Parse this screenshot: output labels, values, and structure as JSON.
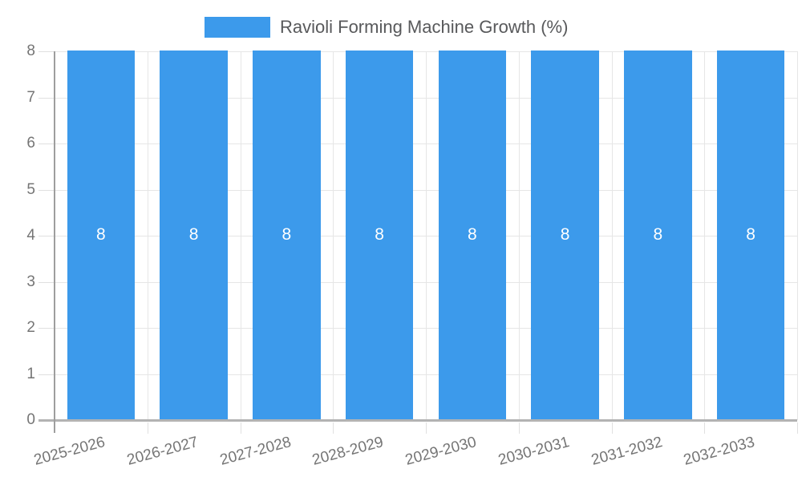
{
  "legend": {
    "series_label": "Ravioli Forming Machine Growth (%)"
  },
  "chart_data": {
    "type": "bar",
    "title": "Ravioli Forming Machine Growth (%)",
    "categories": [
      "2025-2026",
      "2026-2027",
      "2027-2028",
      "2028-2029",
      "2029-2030",
      "2030-2031",
      "2031-2032",
      "2032-2033"
    ],
    "series": [
      {
        "name": "Ravioli Forming Machine Growth (%)",
        "values": [
          8,
          8,
          8,
          8,
          8,
          8,
          8,
          8
        ],
        "color": "#3c9aeb"
      }
    ],
    "bar_labels": [
      "8",
      "8",
      "8",
      "8",
      "8",
      "8",
      "8",
      "8"
    ],
    "xlabel": "",
    "ylabel": "",
    "ylim": [
      0,
      8
    ],
    "yticks": [
      0,
      1,
      2,
      3,
      4,
      5,
      6,
      7,
      8
    ],
    "grid": true,
    "legend_position": "top"
  },
  "colors": {
    "bar": "#3c9aeb",
    "bar_label": "#ffffff",
    "axis_text": "#757575",
    "legend_text": "#58595b",
    "gridline": "#e6e6e6",
    "tick": "#e0e0e0",
    "axis_line_x": "#b3b3b3",
    "axis_line_y": "#9e9e9e",
    "background": "#ffffff"
  }
}
